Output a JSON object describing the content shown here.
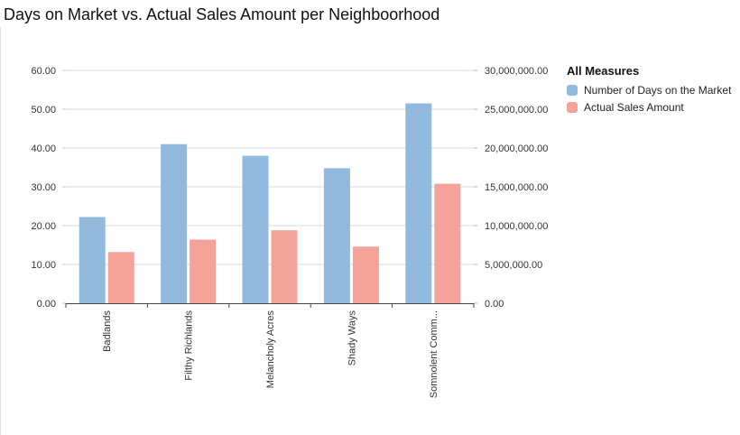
{
  "title": "Days on Market vs. Actual Sales Amount per Neighboorhood",
  "legend": {
    "title": "All Measures"
  },
  "chart_data": {
    "type": "bar",
    "title": "Days on Market vs. Actual Sales Amount per Neighboorhood",
    "categories": [
      "Badlands",
      "Filthy Richlands",
      "Melancholy Acres",
      "Shady Ways",
      "Somnolent Comm..."
    ],
    "series": [
      {
        "name": "Number of Days on the Market",
        "axis": "left",
        "color": "#92bade",
        "values": [
          22.2,
          41.0,
          38.0,
          34.8,
          51.5
        ]
      },
      {
        "name": "Actual Sales Amount",
        "axis": "right",
        "color": "#f5a29b",
        "values": [
          6600000,
          8200000,
          9400000,
          7300000,
          15400000
        ]
      }
    ],
    "y_left": {
      "range": [
        0,
        60
      ],
      "ticks": [
        "0.00",
        "10.00",
        "20.00",
        "30.00",
        "40.00",
        "50.00",
        "60.00"
      ]
    },
    "y_right": {
      "range": [
        0,
        30000000
      ],
      "ticks": [
        "0.00",
        "5,000,000.00",
        "10,000,000.00",
        "15,000,000.00",
        "20,000,000.00",
        "25,000,000.00",
        "30,000,000.00"
      ]
    },
    "grid": true,
    "legend_position": "right"
  }
}
